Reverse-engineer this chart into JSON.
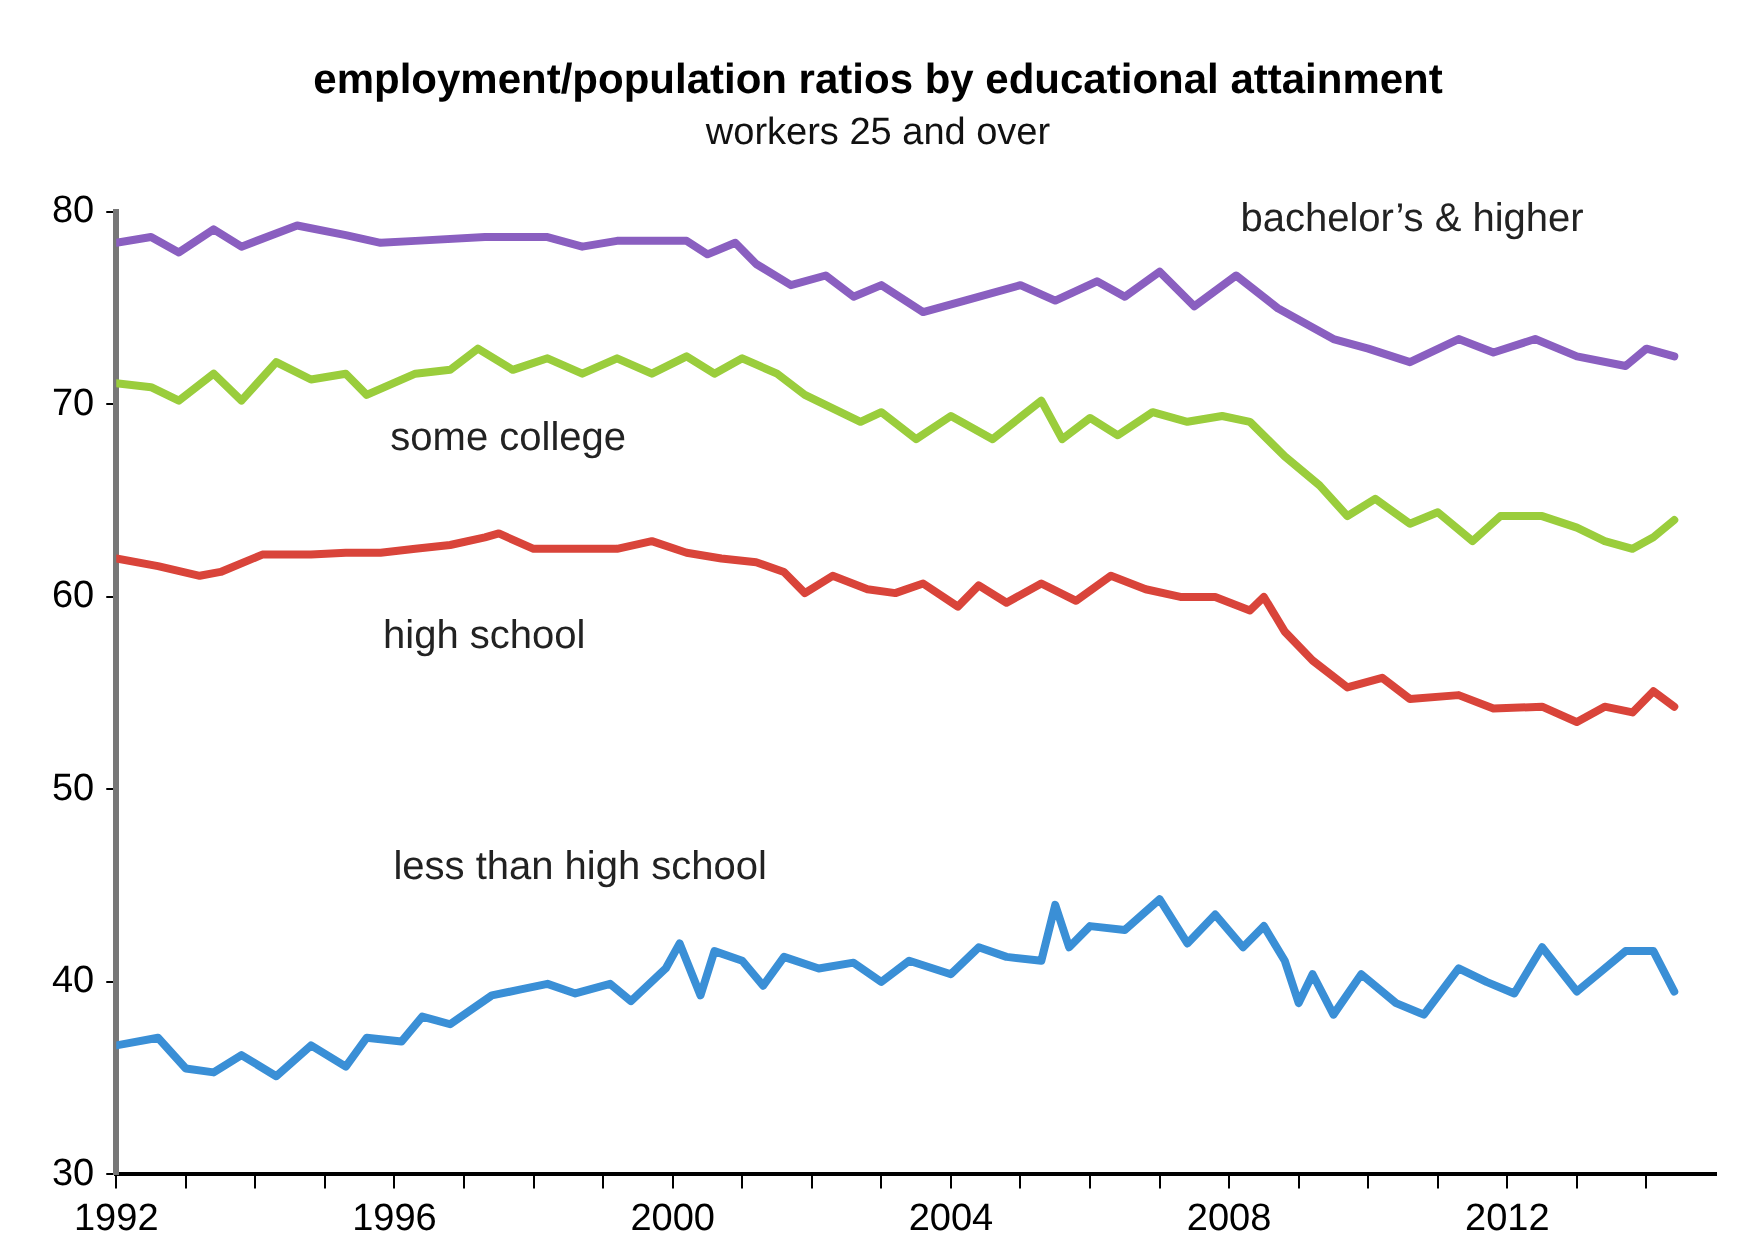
{
  "chart_data": {
    "type": "line",
    "title": "employment/population ratios by educational attainment",
    "subtitle": "workers 25 and over",
    "xlim": [
      1992,
      2015
    ],
    "xticks": [
      1992,
      {
        "value": 1993,
        "label": null
      },
      {
        "value": 1994,
        "label": null
      },
      {
        "value": 1995,
        "label": null
      },
      1996,
      {
        "value": 1997,
        "label": null
      },
      {
        "value": 1998,
        "label": null
      },
      {
        "value": 1999,
        "label": null
      },
      2000,
      {
        "value": 2001,
        "label": null
      },
      {
        "value": 2002,
        "label": null
      },
      {
        "value": 2003,
        "label": null
      },
      2004,
      {
        "value": 2005,
        "label": null
      },
      {
        "value": 2006,
        "label": null
      },
      {
        "value": 2007,
        "label": null
      },
      2008,
      {
        "value": 2009,
        "label": null
      },
      {
        "value": 2010,
        "label": null
      },
      {
        "value": 2011,
        "label": null
      },
      2012,
      {
        "value": 2013,
        "label": null
      },
      {
        "value": 2014,
        "label": null
      }
    ],
    "ylim": [
      30,
      80
    ],
    "yticks": [
      30,
      40,
      50,
      60,
      70,
      80
    ],
    "grid": false,
    "legend": false,
    "marker": "none",
    "line_style": "solid",
    "series": [
      {
        "name": "bachelor’s & higher",
        "color": "#8a5fc0",
        "x": [
          1992.0,
          1992.5,
          1992.9,
          1993.4,
          1993.8,
          1994.6,
          1995.3,
          1995.8,
          1996.3,
          1997.3,
          1998.2,
          1998.7,
          1999.2,
          2000.2,
          2000.5,
          2000.9,
          2001.2,
          2001.7,
          2002.2,
          2002.6,
          2003.0,
          2003.6,
          2004.2,
          2005.0,
          2005.5,
          2006.1,
          2006.5,
          2007.0,
          2007.5,
          2008.1,
          2008.7,
          2009.5,
          2010.0,
          2010.6,
          2011.3,
          2011.8,
          2012.4,
          2013.0,
          2013.7,
          2014.0,
          2014.4
        ],
        "values": [
          78.4,
          78.7,
          77.9,
          79.1,
          78.2,
          79.3,
          78.8,
          78.4,
          78.5,
          78.7,
          78.7,
          78.2,
          78.5,
          78.5,
          77.8,
          78.4,
          77.3,
          76.2,
          76.7,
          75.6,
          76.2,
          74.8,
          75.4,
          76.2,
          75.4,
          76.4,
          75.6,
          76.9,
          75.1,
          76.7,
          75.0,
          73.4,
          72.9,
          72.2,
          73.4,
          72.7,
          73.4,
          72.5,
          72.0,
          72.9,
          72.5
        ]
      },
      {
        "name": "some college",
        "color": "#9acd3c",
        "x": [
          1992.0,
          1992.5,
          1992.9,
          1993.4,
          1993.8,
          1994.3,
          1994.8,
          1995.3,
          1995.6,
          1996.3,
          1996.8,
          1997.2,
          1997.7,
          1998.2,
          1998.7,
          1999.2,
          1999.7,
          2000.2,
          2000.6,
          2001.0,
          2001.5,
          2001.9,
          2002.3,
          2002.7,
          2003.0,
          2003.5,
          2004.0,
          2004.6,
          2005.3,
          2005.6,
          2006.0,
          2006.4,
          2006.9,
          2007.4,
          2007.9,
          2008.3,
          2008.8,
          2009.3,
          2009.7,
          2010.1,
          2010.6,
          2011.0,
          2011.5,
          2011.9,
          2012.5,
          2013.0,
          2013.4,
          2013.8,
          2014.1,
          2014.4
        ],
        "values": [
          71.1,
          70.9,
          70.2,
          71.6,
          70.2,
          72.2,
          71.3,
          71.6,
          70.5,
          71.6,
          71.8,
          72.9,
          71.8,
          72.4,
          71.6,
          72.4,
          71.6,
          72.5,
          71.6,
          72.4,
          71.6,
          70.5,
          69.8,
          69.1,
          69.6,
          68.2,
          69.4,
          68.2,
          70.2,
          68.2,
          69.3,
          68.4,
          69.6,
          69.1,
          69.4,
          69.1,
          67.3,
          65.8,
          64.2,
          65.1,
          63.8,
          64.4,
          62.9,
          64.2,
          64.2,
          63.6,
          62.9,
          62.5,
          63.1,
          64.0
        ]
      },
      {
        "name": "high school",
        "color": "#d9443a",
        "x": [
          1992.0,
          1992.6,
          1993.2,
          1993.5,
          1994.1,
          1994.8,
          1995.3,
          1995.8,
          1996.3,
          1996.8,
          1997.3,
          1997.5,
          1998.0,
          1998.7,
          1999.2,
          1999.7,
          2000.2,
          2000.7,
          2001.2,
          2001.6,
          2001.9,
          2002.3,
          2002.8,
          2003.2,
          2003.6,
          2004.1,
          2004.4,
          2004.8,
          2005.3,
          2005.8,
          2006.3,
          2006.8,
          2007.3,
          2007.8,
          2008.3,
          2008.5,
          2008.8,
          2009.2,
          2009.7,
          2010.2,
          2010.6,
          2011.3,
          2011.8,
          2012.5,
          2013.0,
          2013.4,
          2013.8,
          2014.1,
          2014.4
        ],
        "values": [
          62.0,
          61.6,
          61.1,
          61.3,
          62.2,
          62.2,
          62.3,
          62.3,
          62.5,
          62.7,
          63.1,
          63.3,
          62.5,
          62.5,
          62.5,
          62.9,
          62.3,
          62.0,
          61.8,
          61.3,
          60.2,
          61.1,
          60.4,
          60.2,
          60.7,
          59.5,
          60.6,
          59.7,
          60.7,
          59.8,
          61.1,
          60.4,
          60.0,
          60.0,
          59.3,
          60.0,
          58.2,
          56.7,
          55.3,
          55.8,
          54.7,
          54.9,
          54.2,
          54.3,
          53.5,
          54.3,
          54.0,
          55.1,
          54.3
        ]
      },
      {
        "name": "less than high school",
        "color": "#3a8fd6",
        "x": [
          1992.0,
          1992.6,
          1993.0,
          1993.4,
          1993.8,
          1994.3,
          1994.8,
          1995.3,
          1995.6,
          1996.1,
          1996.4,
          1996.8,
          1997.4,
          1997.8,
          1998.2,
          1998.6,
          1999.1,
          1999.4,
          1999.9,
          2000.1,
          2000.4,
          2000.6,
          2001.0,
          2001.3,
          2001.6,
          2002.1,
          2002.6,
          2003.0,
          2003.4,
          2004.0,
          2004.4,
          2004.8,
          2005.3,
          2005.5,
          2005.7,
          2006.0,
          2006.5,
          2007.0,
          2007.4,
          2007.8,
          2008.2,
          2008.5,
          2008.8,
          2009.0,
          2009.2,
          2009.5,
          2009.9,
          2010.4,
          2010.8,
          2011.3,
          2011.7,
          2012.1,
          2012.5,
          2013.0,
          2013.3,
          2013.7,
          2014.1,
          2014.4
        ],
        "values": [
          36.7,
          37.1,
          35.5,
          35.3,
          36.2,
          35.1,
          36.7,
          35.6,
          37.1,
          36.9,
          38.2,
          37.8,
          39.3,
          39.6,
          39.9,
          39.4,
          39.9,
          39.0,
          40.7,
          42.0,
          39.3,
          41.6,
          41.1,
          39.8,
          41.3,
          40.7,
          41.0,
          40.0,
          41.1,
          40.4,
          41.8,
          41.3,
          41.1,
          44.0,
          41.8,
          42.9,
          42.7,
          44.3,
          42.0,
          43.5,
          41.8,
          42.9,
          41.1,
          38.9,
          40.4,
          38.3,
          40.4,
          38.9,
          38.3,
          40.7,
          40.0,
          39.4,
          41.8,
          39.5,
          40.4,
          41.6,
          41.6,
          39.5
        ]
      }
    ]
  }
}
